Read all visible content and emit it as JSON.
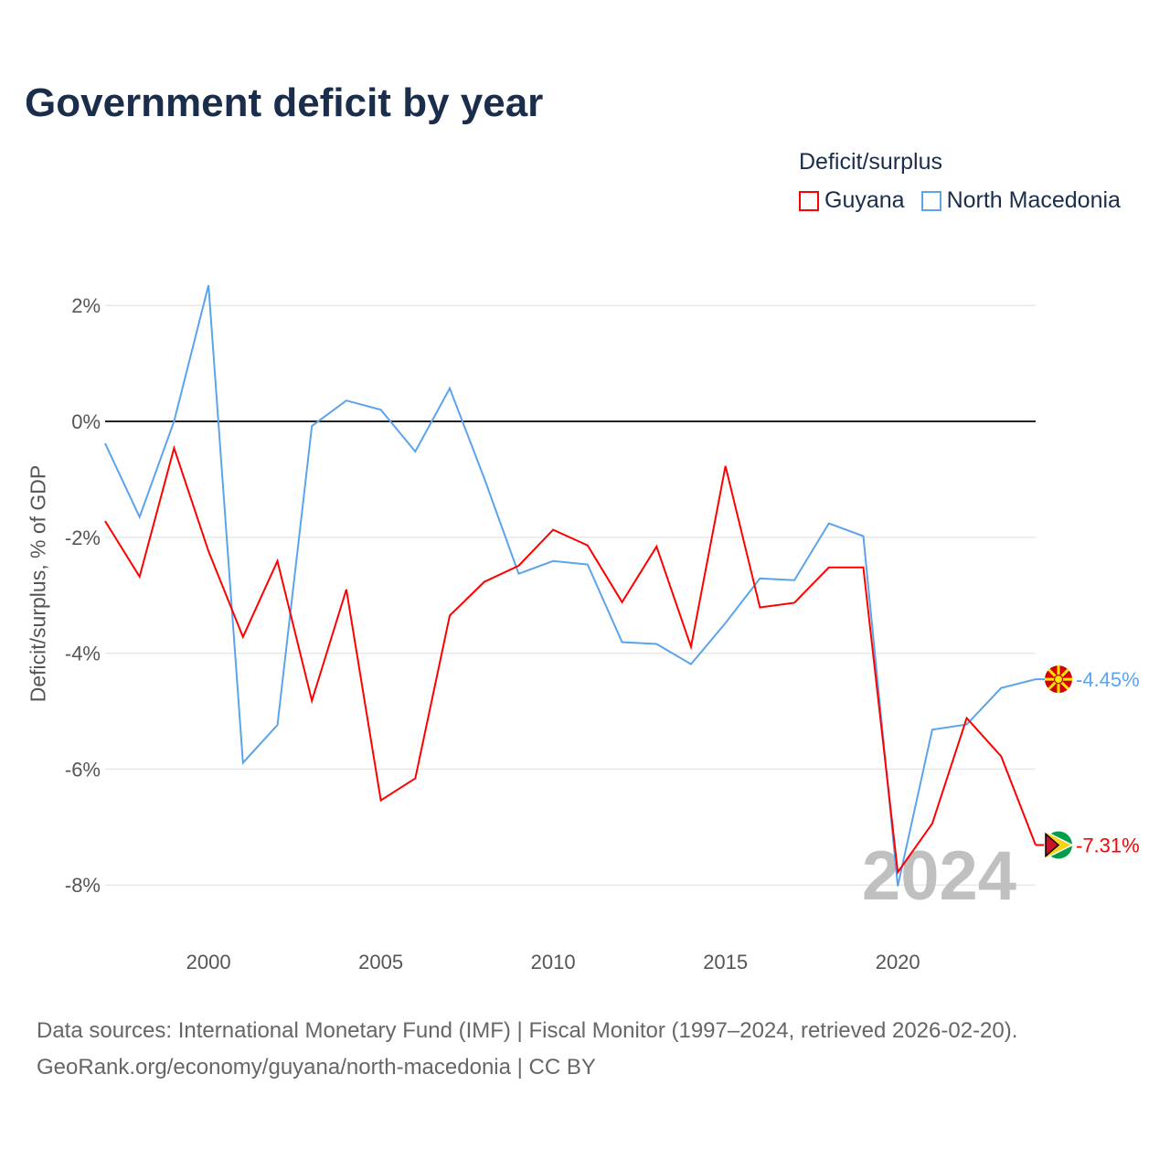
{
  "title": "Government deficit by year",
  "legend": {
    "title": "Deficit/surplus",
    "items": [
      {
        "name": "Guyana",
        "color": "#ff0000"
      },
      {
        "name": "North Macedonia",
        "color": "#5ba4ec"
      }
    ]
  },
  "source": {
    "line1": "Data sources: International Monetary Fund (IMF) | Fiscal Monitor (1997–2024, retrieved 2026-02-20).",
    "line2": "GeoRank.org/economy/guyana/north-macedonia | CC BY"
  },
  "watermark_year": "2024",
  "chart_data": {
    "type": "line",
    "title": "Government deficit by year",
    "xlabel": "",
    "ylabel": "Deficit/surplus, % of GDP",
    "xlim": [
      1997,
      2024
    ],
    "ylim": [
      -9,
      2.5
    ],
    "x_ticks": [
      2000,
      2005,
      2010,
      2015,
      2020
    ],
    "x_tick_labels": [
      "2000",
      "2005",
      "2010",
      "2015",
      "2020"
    ],
    "y_ticks": [
      2,
      0,
      -2,
      -4,
      -6,
      -8
    ],
    "y_tick_labels": [
      "2%",
      "0%",
      "-2%",
      "-4%",
      "-6%",
      "-8%"
    ],
    "x": [
      1997,
      1998,
      1999,
      2000,
      2001,
      2002,
      2003,
      2004,
      2005,
      2006,
      2007,
      2008,
      2009,
      2010,
      2011,
      2012,
      2013,
      2014,
      2015,
      2016,
      2017,
      2018,
      2019,
      2020,
      2021,
      2022,
      2023,
      2024
    ],
    "series": [
      {
        "name": "Guyana",
        "color": "#ff0000",
        "end_label": "-7.31%",
        "values": [
          -1.72,
          -2.68,
          -0.46,
          -2.24,
          -3.72,
          -2.41,
          -4.82,
          -2.9,
          -6.54,
          -6.16,
          -3.35,
          -2.77,
          -2.49,
          -1.87,
          -2.14,
          -3.12,
          -2.16,
          -3.89,
          -0.77,
          -3.21,
          -3.13,
          -2.52,
          -2.52,
          -7.78,
          -6.94,
          -5.12,
          -5.78,
          -7.31
        ]
      },
      {
        "name": "North Macedonia",
        "color": "#5ba4ec",
        "end_label": "-4.45%",
        "values": [
          -0.38,
          -1.65,
          0.0,
          2.35,
          -5.89,
          -5.24,
          -0.08,
          0.36,
          0.2,
          -0.52,
          0.57,
          -0.98,
          -2.63,
          -2.41,
          -2.47,
          -3.81,
          -3.84,
          -4.19,
          -3.48,
          -2.71,
          -2.74,
          -1.76,
          -1.98,
          -8.02,
          -5.32,
          -5.23,
          -4.6,
          -4.45
        ]
      }
    ],
    "grid": true,
    "legend_position": "top-right"
  }
}
